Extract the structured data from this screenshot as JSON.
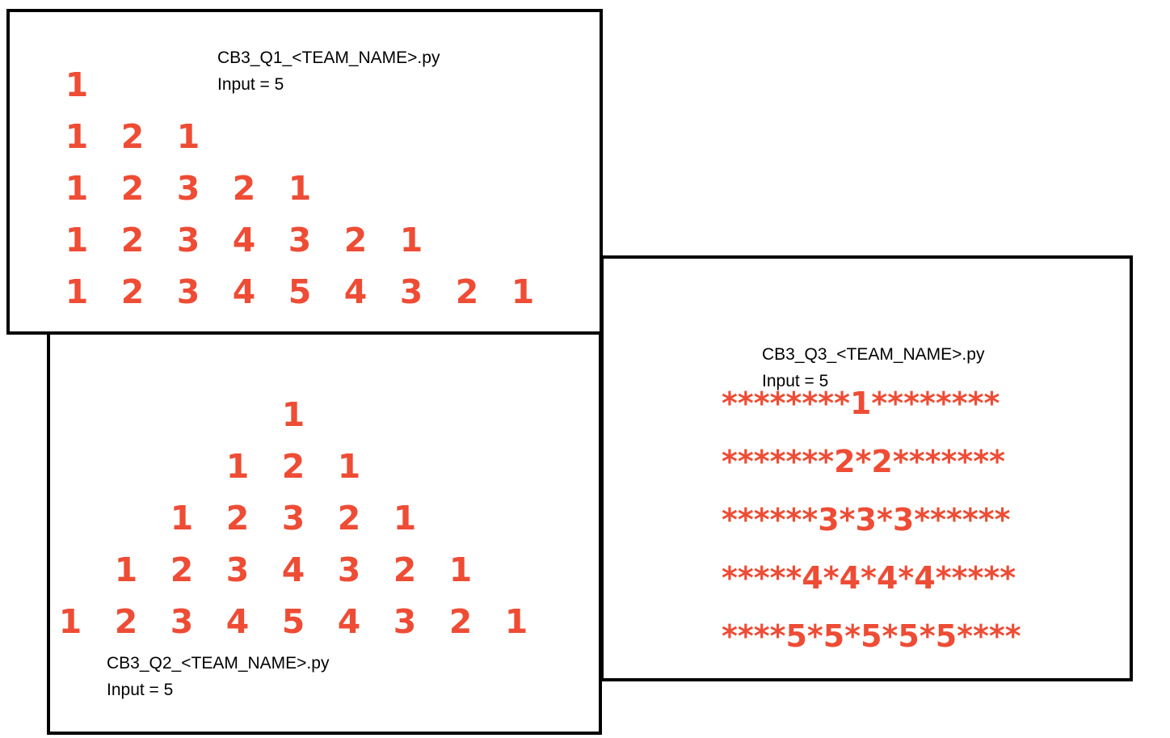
{
  "colors": {
    "accent": "#ee4c35",
    "border": "#000000",
    "text": "#000000"
  },
  "q1": {
    "filename": "CB3_Q1_<TEAM_NAME>.py",
    "input": "Input = 5",
    "rows": [
      [
        "1"
      ],
      [
        "1",
        "2",
        "1"
      ],
      [
        "1",
        "2",
        "3",
        "2",
        "1"
      ],
      [
        "1",
        "2",
        "3",
        "4",
        "3",
        "2",
        "1"
      ],
      [
        "1",
        "2",
        "3",
        "4",
        "5",
        "4",
        "3",
        "2",
        "1"
      ]
    ]
  },
  "q2": {
    "filename": "CB3_Q2_<TEAM_NAME>.py",
    "input": "Input = 5",
    "rows": [
      [
        "1"
      ],
      [
        "1",
        "2",
        "1"
      ],
      [
        "1",
        "2",
        "3",
        "2",
        "1"
      ],
      [
        "1",
        "2",
        "3",
        "4",
        "3",
        "2",
        "1"
      ],
      [
        "1",
        "2",
        "3",
        "4",
        "5",
        "4",
        "3",
        "2",
        "1"
      ]
    ]
  },
  "q3": {
    "filename": "CB3_Q3_<TEAM_NAME>.py",
    "input": "Input = 5",
    "rows": [
      "********1********",
      "*******2*2*******",
      "******3*3*3******",
      "*****4*4*4*4*****",
      "****5*5*5*5*5****"
    ]
  }
}
